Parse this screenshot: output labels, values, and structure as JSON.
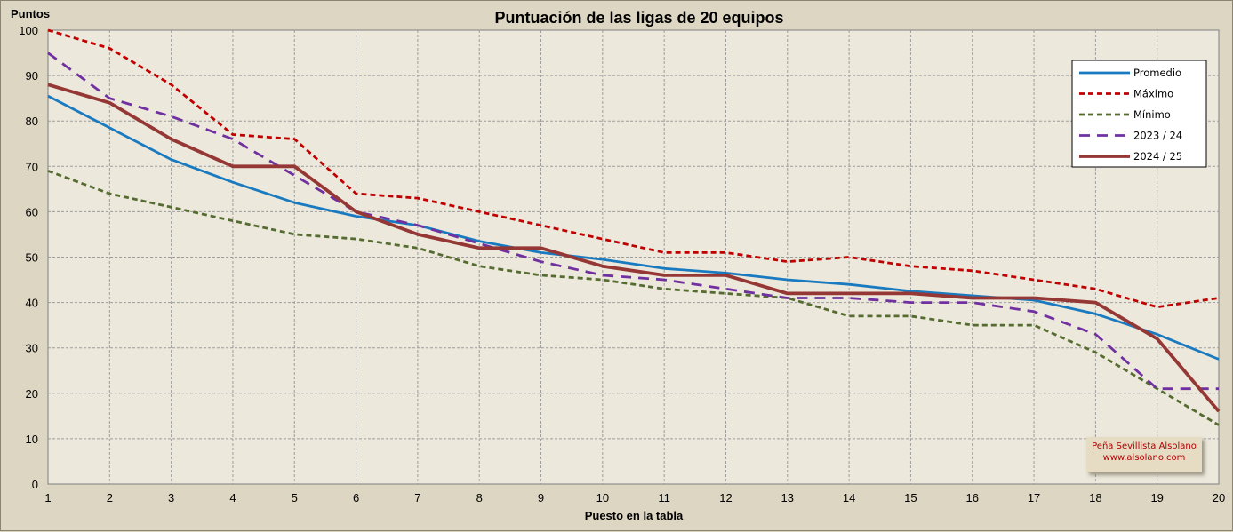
{
  "chart_data": {
    "type": "line",
    "title": "Puntuación de las ligas de 20 equipos",
    "xlabel": "Puesto en la tabla",
    "ylabel": "Puntos",
    "x": [
      1,
      2,
      3,
      4,
      5,
      6,
      7,
      8,
      9,
      10,
      11,
      12,
      13,
      14,
      15,
      16,
      17,
      18,
      19,
      20
    ],
    "ylim": [
      0,
      100
    ],
    "yticks": [
      0,
      10,
      20,
      30,
      40,
      50,
      60,
      70,
      80,
      90,
      100
    ],
    "grid": true,
    "legend_position": "top-right",
    "series": [
      {
        "name": "Promedio",
        "color": "#1a7ac0",
        "dash": "solid",
        "width": 2.8,
        "values": [
          85.5,
          78.5,
          71.5,
          66.5,
          62,
          59,
          57,
          53.5,
          51,
          49.5,
          47.5,
          46.5,
          45,
          44,
          42.5,
          41.5,
          40.5,
          37.5,
          33,
          27.5
        ]
      },
      {
        "name": "Máximo",
        "color": "#c00000",
        "dash": "dotted",
        "width": 2.8,
        "values": [
          100,
          96,
          88,
          77,
          76,
          64,
          63,
          60,
          57,
          54,
          51,
          51,
          49,
          50,
          48,
          47,
          45,
          43,
          39,
          41
        ]
      },
      {
        "name": "Mínimo",
        "color": "#556b2f",
        "dash": "dotted",
        "width": 2.8,
        "values": [
          69,
          64,
          61,
          58,
          55,
          54,
          52,
          48,
          46,
          45,
          43,
          42,
          41,
          37,
          37,
          35,
          35,
          29,
          21,
          13
        ]
      },
      {
        "name": "2023 / 24",
        "color": "#7030a0",
        "dash": "dashed",
        "width": 2.8,
        "values": [
          95,
          85,
          81,
          76,
          68,
          60,
          57,
          53,
          49,
          46,
          45,
          43,
          41,
          41,
          40,
          40,
          38,
          33,
          21,
          21
        ]
      },
      {
        "name": "2024 / 25",
        "color": "#953735",
        "dash": "solid",
        "width": 3.8,
        "values": [
          88,
          84,
          76,
          70,
          70,
          60,
          55,
          52,
          52,
          48,
          46,
          46,
          42,
          42,
          42,
          41,
          41,
          40,
          32,
          16
        ]
      }
    ]
  },
  "watermark": {
    "line1": "Peña Sevillista Alsolano",
    "line2": "www.alsolano.com"
  }
}
